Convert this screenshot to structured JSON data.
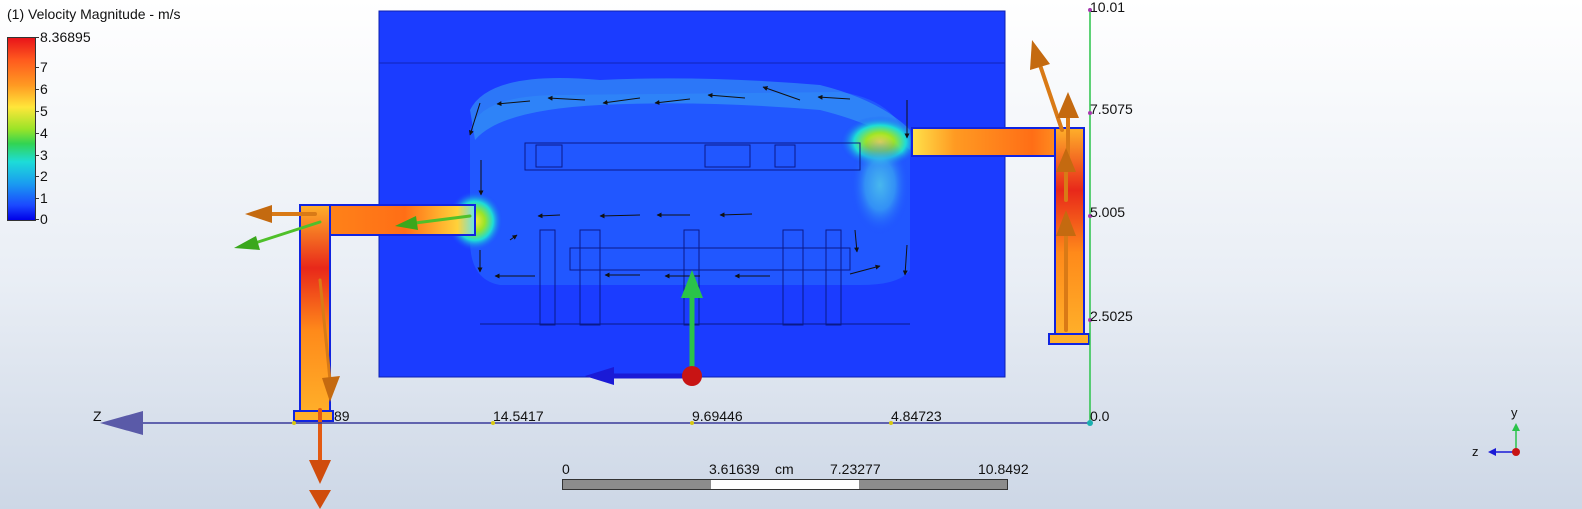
{
  "legend": {
    "title": "(1) Velocity Magnitude - m/s",
    "max_label": "8.36895",
    "ticks": [
      "7",
      "6",
      "5",
      "4",
      "3",
      "2",
      "1",
      "0"
    ]
  },
  "z_axis": {
    "name": "Z",
    "ticks": [
      "89",
      "14.5417",
      "9.69446",
      "4.84723",
      "0.0"
    ]
  },
  "y_axis": {
    "ticks": [
      "10.01",
      "7.5075",
      "5.005",
      "2.5025"
    ]
  },
  "scale_bar": {
    "unit": "cm",
    "labels": [
      "0",
      "3.61639",
      "7.23277",
      "10.8492"
    ]
  },
  "triad": {
    "y": "y",
    "z": "z"
  },
  "colors": {
    "domain_blue": "#1b3cff",
    "jet_hot": "#ff7a1e",
    "axis_line": "#3a3a9a",
    "axis_green": "#2ac34a"
  }
}
